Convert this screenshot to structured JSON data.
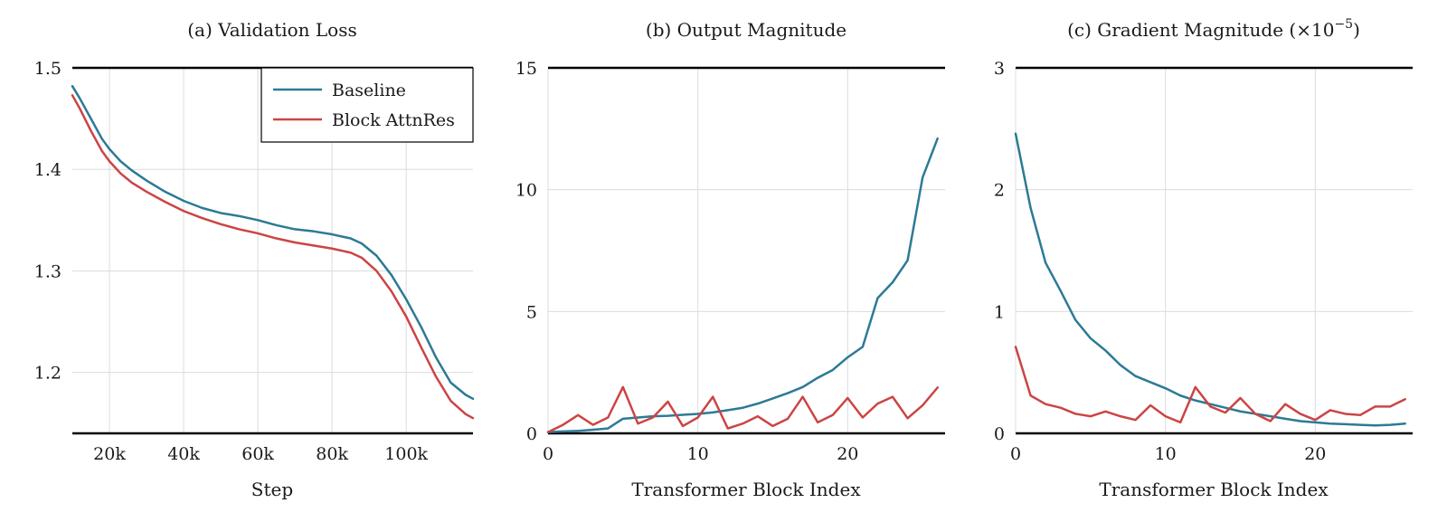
{
  "colors": {
    "Baseline": "#2c7a96",
    "Block AttnRes": "#cc4444"
  },
  "chart_data": [
    {
      "type": "line",
      "title": "(a) Validation Loss",
      "xlabel": "Step",
      "ylabel": "",
      "xlim": [
        10000,
        118000
      ],
      "ylim": [
        1.14,
        1.5
      ],
      "xticks": [
        20000,
        40000,
        60000,
        80000,
        100000
      ],
      "xtick_labels": [
        "20k",
        "40k",
        "60k",
        "80k",
        "100k"
      ],
      "yticks": [
        1.2,
        1.3,
        1.4,
        1.5
      ],
      "ytick_labels": [
        "1.2",
        "1.3",
        "1.4",
        "1.5"
      ],
      "grid": true,
      "legend": "top-right",
      "series": [
        {
          "name": "Baseline",
          "x": [
            10000,
            12000,
            15000,
            18000,
            20000,
            23000,
            26000,
            30000,
            35000,
            40000,
            45000,
            50000,
            55000,
            60000,
            65000,
            70000,
            75000,
            80000,
            85000,
            88000,
            92000,
            96000,
            100000,
            104000,
            108000,
            112000,
            116000,
            118000
          ],
          "y": [
            1.482,
            1.47,
            1.45,
            1.43,
            1.42,
            1.408,
            1.399,
            1.389,
            1.378,
            1.369,
            1.362,
            1.357,
            1.354,
            1.35,
            1.345,
            1.341,
            1.339,
            1.336,
            1.332,
            1.327,
            1.315,
            1.296,
            1.272,
            1.245,
            1.215,
            1.19,
            1.178,
            1.174
          ]
        },
        {
          "name": "Block AttnRes",
          "x": [
            10000,
            12000,
            15000,
            18000,
            20000,
            23000,
            26000,
            30000,
            35000,
            40000,
            45000,
            50000,
            55000,
            60000,
            65000,
            70000,
            75000,
            80000,
            85000,
            88000,
            92000,
            96000,
            100000,
            104000,
            108000,
            112000,
            116000,
            118000
          ],
          "y": [
            1.473,
            1.46,
            1.438,
            1.418,
            1.408,
            1.396,
            1.387,
            1.378,
            1.368,
            1.359,
            1.352,
            1.346,
            1.341,
            1.337,
            1.332,
            1.328,
            1.325,
            1.322,
            1.318,
            1.313,
            1.3,
            1.28,
            1.255,
            1.225,
            1.196,
            1.172,
            1.159,
            1.155
          ]
        }
      ]
    },
    {
      "type": "line",
      "title": "(b) Output Magnitude",
      "xlabel": "Transformer Block Index",
      "ylabel": "",
      "xlim": [
        0,
        26.5
      ],
      "ylim": [
        0,
        15
      ],
      "xticks": [
        0,
        10,
        20
      ],
      "xtick_labels": [
        "0",
        "10",
        "20"
      ],
      "yticks": [
        0,
        5,
        10,
        15
      ],
      "ytick_labels": [
        "0",
        "5",
        "10",
        "15"
      ],
      "grid": true,
      "series": [
        {
          "name": "Baseline",
          "x": [
            0,
            1,
            2,
            3,
            4,
            5,
            6,
            7,
            8,
            9,
            10,
            11,
            12,
            13,
            14,
            15,
            16,
            17,
            18,
            19,
            20,
            21,
            22,
            23,
            24,
            25,
            26
          ],
          "y": [
            0.05,
            0.08,
            0.1,
            0.15,
            0.2,
            0.6,
            0.65,
            0.7,
            0.72,
            0.76,
            0.8,
            0.86,
            0.95,
            1.05,
            1.22,
            1.43,
            1.65,
            1.9,
            2.28,
            2.6,
            3.12,
            3.55,
            5.55,
            6.2,
            7.1,
            10.5,
            12.1
          ]
        },
        {
          "name": "Block AttnRes",
          "x": [
            0,
            1,
            2,
            3,
            4,
            5,
            6,
            7,
            8,
            9,
            10,
            11,
            12,
            13,
            14,
            15,
            16,
            17,
            18,
            19,
            20,
            21,
            22,
            23,
            24,
            25,
            26
          ],
          "y": [
            0.05,
            0.35,
            0.75,
            0.35,
            0.65,
            1.9,
            0.4,
            0.65,
            1.3,
            0.3,
            0.65,
            1.5,
            0.2,
            0.4,
            0.7,
            0.3,
            0.6,
            1.5,
            0.45,
            0.75,
            1.45,
            0.65,
            1.22,
            1.5,
            0.62,
            1.15,
            1.88
          ]
        }
      ]
    },
    {
      "type": "line",
      "title": "(c) Gradient Magnitude (×10",
      "title_sup": "−5",
      "title_close": ")",
      "xlabel": "Transformer Block Index",
      "ylabel": "",
      "xlim": [
        0,
        26.5
      ],
      "ylim": [
        0,
        3
      ],
      "xticks": [
        0,
        10,
        20
      ],
      "xtick_labels": [
        "0",
        "10",
        "20"
      ],
      "yticks": [
        0,
        1,
        2,
        3
      ],
      "ytick_labels": [
        "0",
        "1",
        "2",
        "3"
      ],
      "grid": true,
      "series": [
        {
          "name": "Baseline",
          "x": [
            0,
            1,
            2,
            3,
            4,
            5,
            6,
            7,
            8,
            9,
            10,
            11,
            12,
            13,
            14,
            15,
            16,
            17,
            18,
            19,
            20,
            21,
            22,
            23,
            24,
            25,
            26
          ],
          "y": [
            2.46,
            1.85,
            1.4,
            1.17,
            0.93,
            0.78,
            0.68,
            0.56,
            0.47,
            0.42,
            0.37,
            0.31,
            0.27,
            0.24,
            0.21,
            0.18,
            0.16,
            0.14,
            0.12,
            0.1,
            0.09,
            0.08,
            0.075,
            0.07,
            0.065,
            0.07,
            0.08
          ]
        },
        {
          "name": "Block AttnRes",
          "x": [
            0,
            1,
            2,
            3,
            4,
            5,
            6,
            7,
            8,
            9,
            10,
            11,
            12,
            13,
            14,
            15,
            16,
            17,
            18,
            19,
            20,
            21,
            22,
            23,
            24,
            25,
            26
          ],
          "y": [
            0.71,
            0.31,
            0.24,
            0.21,
            0.16,
            0.14,
            0.18,
            0.14,
            0.11,
            0.23,
            0.14,
            0.09,
            0.38,
            0.22,
            0.17,
            0.29,
            0.16,
            0.1,
            0.24,
            0.16,
            0.11,
            0.19,
            0.16,
            0.15,
            0.22,
            0.22,
            0.28
          ]
        }
      ]
    }
  ]
}
